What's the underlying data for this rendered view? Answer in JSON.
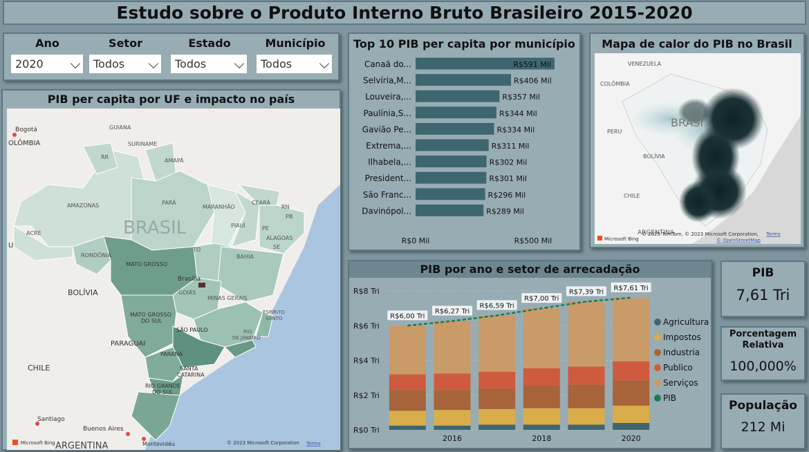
{
  "header": {
    "title": "Estudo sobre o Produto Interno Bruto Brasileiro 2015-2020"
  },
  "filters": {
    "ano": {
      "label": "Ano",
      "value": "2020"
    },
    "setor": {
      "label": "Setor",
      "value": "Todos"
    },
    "estado": {
      "label": "Estado",
      "value": "Todos"
    },
    "municipio": {
      "label": "Município",
      "value": "Todos"
    }
  },
  "uf_map": {
    "title": "PIB per capita por UF e impacto no país",
    "labels": {
      "bogota": "Bogotá",
      "colombia": "OLÔMBIA",
      "guiana": "GUIANA",
      "suriname": "SURINAME",
      "rr": "RR",
      "amapa": "AMAPÁ",
      "amazonas": "AMAZONAS",
      "para": "PARÁ",
      "maranhao": "MARANHÃO",
      "ceara": "CEARÁ",
      "rn": "RN",
      "piaui": "PIAUÍ",
      "pb": "PB",
      "pe": "PE",
      "alagoas": "ALAGOAS",
      "se": "SE",
      "acre": "ACRE",
      "brasil": "BRASIL",
      "to": "TO",
      "rondonia": "RONDÔNIA",
      "mato_grosso": "MATO GROSSO",
      "bahia": "BAHIA",
      "bolivia": "BOLÍVIA",
      "brasilia": "Brasília",
      "goias": "GOIÁS",
      "minas": "MINAS GERAIS",
      "espirito": "ESPÍRITO",
      "santo": "SANTO",
      "mgs1": "MATO GROSSO",
      "mgs2": "DO SUL",
      "sao_paulo": "SÃO PAULO",
      "rio": "RIO",
      "de_janeiro": "DE JANEIRO",
      "paraguai": "PARAGUAI",
      "parana": "PARANÁ",
      "santa": "SANTA",
      "catarina": "CATARINA",
      "chile": "CHILE",
      "rgs1": "RIO GRANDE",
      "rgs2": "DO SUL",
      "santiago": "Santiago",
      "buenos_aires": "Buenos Aires",
      "argentina": "ARGENTINA",
      "montevideu": "Montevidéu",
      "u": "U"
    },
    "bing": "Microsoft Bing",
    "copyright": "© 2023 Microsoft Corporation",
    "terms": "Terms"
  },
  "top10": {
    "title": "Top 10 PIB per capita por município",
    "axis": [
      "R$0 Mil",
      "R$500 Mil"
    ],
    "colors": {
      "bar": "#3e6670"
    }
  },
  "heatmap": {
    "title": "Mapa de calor do PIB no Brasil",
    "labels": {
      "venezuela": "VENEZUELA",
      "colombia": "COLÔMBIA",
      "peru": "PERU",
      "brasil": "BRASI",
      "bolivia": "BOLÍVIA",
      "chile": "CHILE",
      "argentina": "ARGENTINA"
    },
    "bing": "Microsoft Bing",
    "copyright": "© 2023 TomTom, © 2023 Microsoft Corporation,",
    "osm": "© OpenStreetMap",
    "terms": "Terms"
  },
  "stacked": {
    "title": "PIB por ano e setor de arrecadação"
  },
  "kpis": {
    "pib": {
      "label": "PIB",
      "value": "7,61 Tri"
    },
    "porcentagem": {
      "label1": "Porcentagem",
      "label2": "Relativa",
      "value": "100,000%"
    },
    "populacao": {
      "label": "População",
      "value": "212 Mi"
    }
  },
  "chart_data": [
    {
      "type": "bar",
      "orientation": "horizontal",
      "title": "Top 10 PIB per capita por município",
      "categories": [
        "Canaã do...",
        "Selvíria,M...",
        "Louveira,...",
        "Paulínia,S...",
        "Gavião Pe...",
        "Extrema,...",
        "Ilhabela,...",
        "President...",
        "São Franc...",
        "Davinópol..."
      ],
      "values": [
        591,
        406,
        357,
        344,
        334,
        311,
        302,
        301,
        296,
        289
      ],
      "data_labels": [
        "R$591 Mil",
        "R$406 Mil",
        "R$357 Mil",
        "R$344 Mil",
        "R$334 Mil",
        "R$311 Mil",
        "R$302 Mil",
        "R$301 Mil",
        "R$296 Mil",
        "R$289 Mil"
      ],
      "xlim": [
        0,
        600
      ],
      "x_ticks": [
        "R$0 Mil",
        "R$500 Mil"
      ]
    },
    {
      "type": "bar",
      "stacked": true,
      "title": "PIB por ano e setor de arrecadação",
      "categories": [
        "2015",
        "2016",
        "2017",
        "2018",
        "2019",
        "2020"
      ],
      "x_tick_labels": [
        "2016",
        "2018",
        "2020"
      ],
      "ylim": [
        0,
        8
      ],
      "y_ticks": [
        "R$0 Tri",
        "R$2 Tri",
        "R$4 Tri",
        "R$6 Tri",
        "R$8 Tri"
      ],
      "series": [
        {
          "name": "Agricultura",
          "color": "#3e6670",
          "values": [
            0.25,
            0.25,
            0.3,
            0.3,
            0.3,
            0.4
          ]
        },
        {
          "name": "Impostos",
          "color": "#d9ad4a",
          "values": [
            0.85,
            0.9,
            0.9,
            0.95,
            0.95,
            1.0
          ]
        },
        {
          "name": "Industria",
          "color": "#a7633a",
          "values": [
            1.2,
            1.15,
            1.2,
            1.3,
            1.35,
            1.45
          ]
        },
        {
          "name": "Publico",
          "color": "#cf5b3e",
          "values": [
            0.9,
            0.95,
            0.95,
            1.0,
            1.05,
            1.1
          ]
        },
        {
          "name": "Serviços",
          "color": "#c99b68",
          "values": [
            2.8,
            3.02,
            3.24,
            3.45,
            3.74,
            3.66
          ]
        }
      ],
      "line": {
        "name": "PIB",
        "color": "#1b7a50",
        "values": [
          6.0,
          6.27,
          6.59,
          7.0,
          7.39,
          7.61
        ]
      },
      "line_labels": [
        "R$6,00 Tri",
        "R$6,27 Tri",
        "R$6,59 Tri",
        "R$7,00 Tri",
        "R$7,39 Tri",
        "R$7,61 Tri"
      ],
      "legend": "right"
    }
  ]
}
